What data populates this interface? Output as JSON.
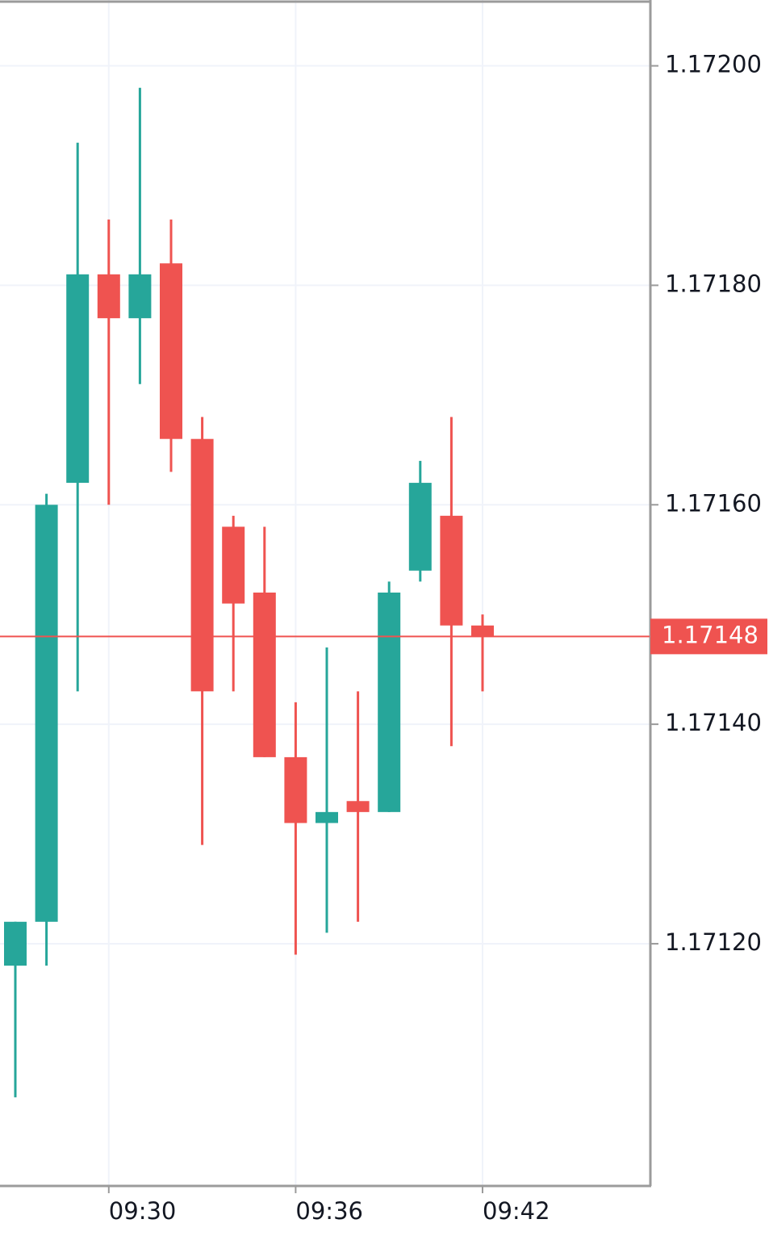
{
  "chart_data": {
    "type": "candlestick",
    "categories": [
      null,
      null,
      null,
      "09:30",
      null,
      null,
      null,
      null,
      null,
      "09:36",
      null,
      null,
      null,
      null,
      null,
      "09:42"
    ],
    "open": [
      1.17118,
      1.17122,
      1.17162,
      1.17181,
      1.17177,
      1.17182,
      1.17166,
      1.17158,
      1.17152,
      1.17137,
      1.17131,
      1.17133,
      1.17132,
      1.17154,
      1.17159,
      1.17149
    ],
    "high": [
      1.17122,
      1.17161,
      1.17193,
      1.17186,
      1.17198,
      1.17186,
      1.17168,
      1.17159,
      1.17158,
      1.17142,
      1.17147,
      1.17143,
      1.17153,
      1.17164,
      1.17168,
      1.1715
    ],
    "low": [
      1.17106,
      1.17118,
      1.17143,
      1.1716,
      1.17171,
      1.17163,
      1.17129,
      1.17143,
      1.17137,
      1.17119,
      1.17121,
      1.17122,
      1.17132,
      1.17153,
      1.17138,
      1.17143
    ],
    "close": [
      1.17122,
      1.1716,
      1.17181,
      1.17177,
      1.17181,
      1.17166,
      1.17143,
      1.17151,
      1.17137,
      1.17131,
      1.17132,
      1.17132,
      1.17152,
      1.17162,
      1.17149,
      1.17148
    ],
    "up_color": "#26a69a",
    "down_color": "#ef5350",
    "ylim": [
      1.17098,
      1.17206
    ],
    "yticks": [
      {
        "value": 1.172,
        "label": "1.17200"
      },
      {
        "value": 1.1718,
        "label": "1.17180"
      },
      {
        "value": 1.1716,
        "label": "1.17160"
      },
      {
        "value": 1.1714,
        "label": "1.17140"
      },
      {
        "value": 1.1712,
        "label": "1.17120"
      }
    ],
    "grid": true,
    "last_price": 1.17148,
    "last_price_color": "#ef5350"
  }
}
